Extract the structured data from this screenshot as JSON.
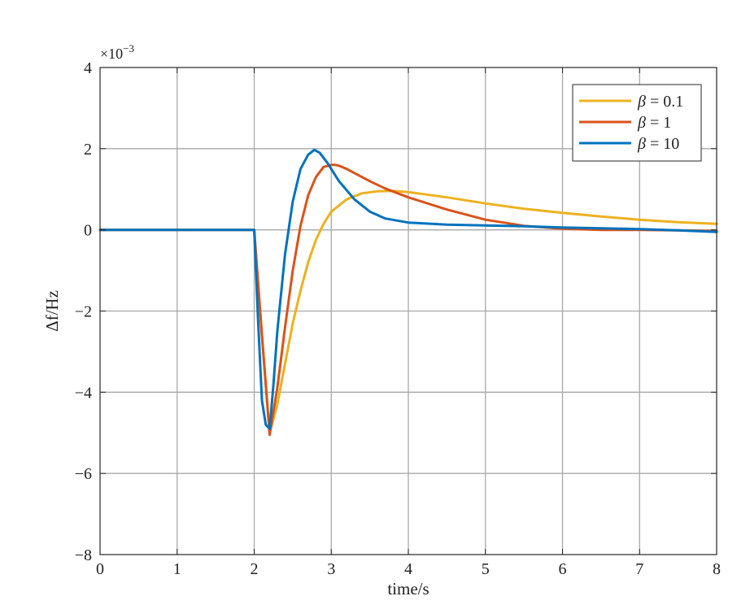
{
  "chart_data": {
    "type": "line",
    "xlabel": "time/s",
    "ylabel": "Δf/Hz",
    "y_exponent_label": "×10",
    "y_exponent_power": "−3",
    "xlim": [
      0,
      8
    ],
    "ylim": [
      -8,
      4
    ],
    "x_ticks": [
      0,
      1,
      2,
      3,
      4,
      5,
      6,
      7,
      8
    ],
    "x_tick_labels": [
      "0",
      "1",
      "2",
      "3",
      "4",
      "5",
      "6",
      "7",
      "8"
    ],
    "y_ticks": [
      -8,
      -6,
      -4,
      -2,
      0,
      2,
      4
    ],
    "y_tick_labels": [
      "−8",
      "−6",
      "−4",
      "−2",
      "0",
      "2",
      "4"
    ],
    "grid": true,
    "legend_position": "top-right",
    "series": [
      {
        "name": "β = 0.1",
        "legend_symbol": "β",
        "legend_value": " = 0.1",
        "color": "#EDB120",
        "x": [
          0,
          2.0,
          2.1,
          2.2,
          2.3,
          2.4,
          2.5,
          2.6,
          2.7,
          2.8,
          2.9,
          3.0,
          3.2,
          3.4,
          3.6,
          3.8,
          4.0,
          4.5,
          5.0,
          5.5,
          6.0,
          6.5,
          7.0,
          7.5,
          8.0
        ],
        "y": [
          0,
          0,
          -2.6,
          -5.0,
          -4.3,
          -3.3,
          -2.3,
          -1.5,
          -0.8,
          -0.25,
          0.15,
          0.45,
          0.75,
          0.9,
          0.95,
          0.96,
          0.93,
          0.8,
          0.65,
          0.52,
          0.42,
          0.33,
          0.25,
          0.19,
          0.15
        ]
      },
      {
        "name": "β = 1",
        "legend_symbol": "β",
        "legend_value": " = 1",
        "color": "#D95319",
        "x": [
          0,
          2.0,
          2.1,
          2.2,
          2.3,
          2.4,
          2.5,
          2.6,
          2.7,
          2.8,
          2.9,
          3.0,
          3.05,
          3.1,
          3.2,
          3.3,
          3.5,
          3.7,
          4.0,
          4.5,
          5.0,
          5.5,
          6.0,
          6.5,
          7.0,
          7.5,
          8.0
        ],
        "y": [
          0,
          0,
          -2.6,
          -5.05,
          -3.9,
          -2.4,
          -1.0,
          0.1,
          0.85,
          1.3,
          1.55,
          1.6,
          1.6,
          1.58,
          1.5,
          1.4,
          1.2,
          1.02,
          0.8,
          0.5,
          0.25,
          0.1,
          0.03,
          0.0,
          0.0,
          -0.01,
          -0.03
        ]
      },
      {
        "name": "β = 10",
        "legend_symbol": "β",
        "legend_value": " = 10",
        "color": "#0072BD",
        "x": [
          0,
          2.0,
          2.05,
          2.1,
          2.15,
          2.2,
          2.25,
          2.3,
          2.4,
          2.5,
          2.6,
          2.7,
          2.78,
          2.85,
          2.95,
          3.1,
          3.3,
          3.5,
          3.7,
          4.0,
          4.5,
          5.0,
          5.5,
          6.0,
          6.5,
          7.0,
          7.5,
          8.0
        ],
        "y": [
          0,
          0,
          -2.2,
          -4.2,
          -4.8,
          -4.9,
          -3.8,
          -2.5,
          -0.6,
          0.7,
          1.5,
          1.85,
          1.97,
          1.9,
          1.65,
          1.2,
          0.75,
          0.45,
          0.28,
          0.18,
          0.13,
          0.11,
          0.09,
          0.06,
          0.04,
          0.02,
          -0.01,
          -0.05
        ]
      }
    ]
  }
}
